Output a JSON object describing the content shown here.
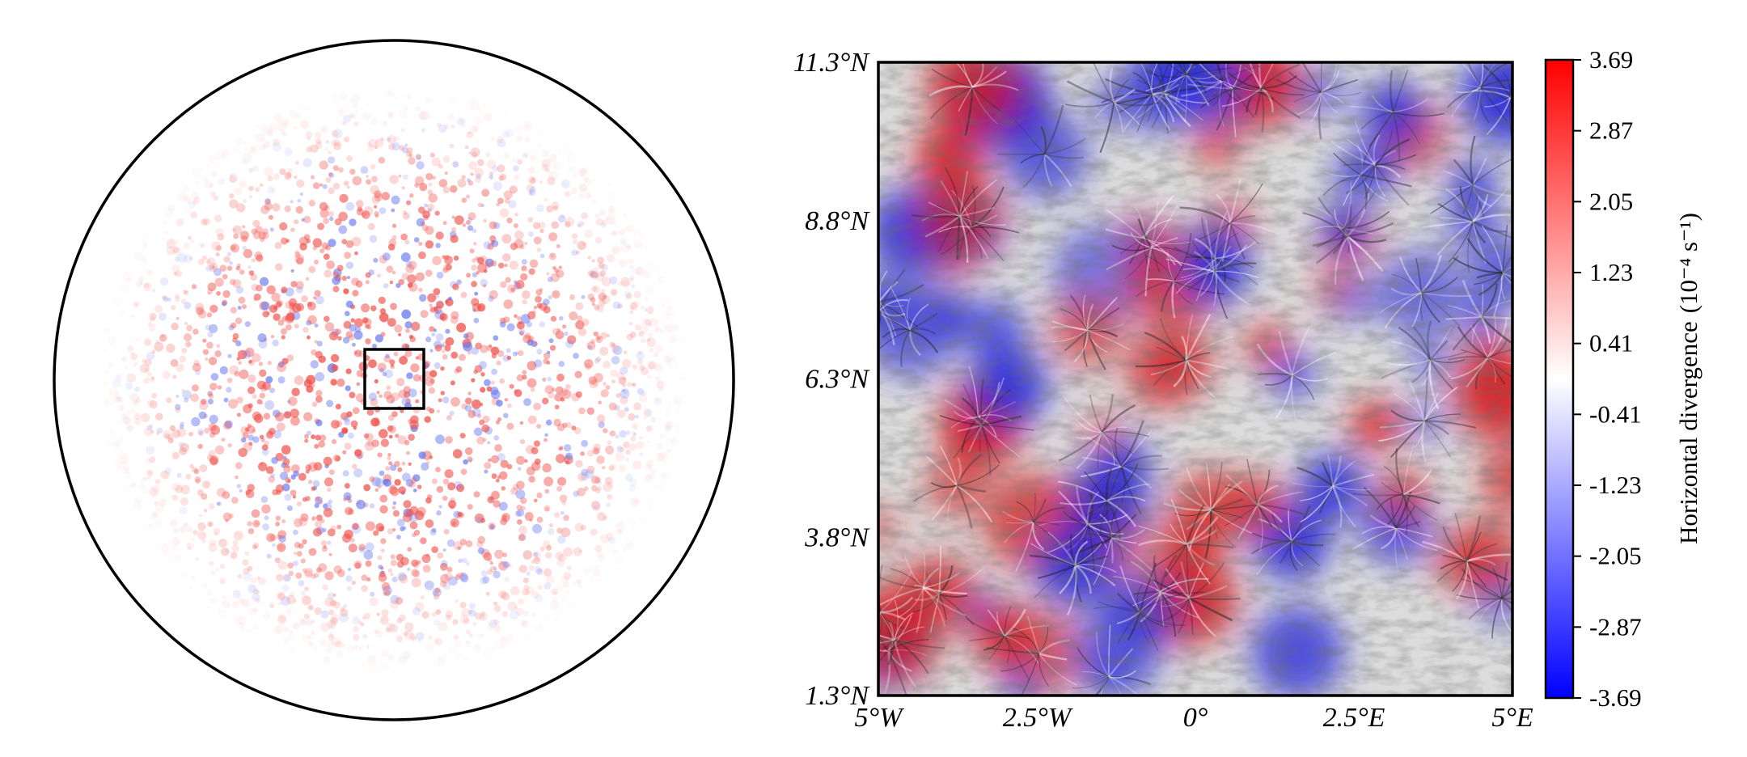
{
  "left_panel": {
    "view": "full-disk map of horizontal divergence",
    "inset_box": "marks the zoomed region shown in the right panel"
  },
  "right_panel": {
    "lat_ticks": [
      {
        "value": 11.3,
        "label": "11.3°N"
      },
      {
        "value": 8.8,
        "label": "8.8°N"
      },
      {
        "value": 6.3,
        "label": "6.3°N"
      },
      {
        "value": 3.8,
        "label": "3.8°N"
      },
      {
        "value": 1.3,
        "label": "1.3°N"
      }
    ],
    "lon_ticks": [
      {
        "value": -5,
        "label": "5°W"
      },
      {
        "value": -2.5,
        "label": "2.5°W"
      },
      {
        "value": 0,
        "label": "0°"
      },
      {
        "value": 2.5,
        "label": "2.5°E"
      },
      {
        "value": 5,
        "label": "5°E"
      }
    ],
    "lat_range": [
      1.3,
      11.3
    ],
    "lon_range": [
      -5,
      5
    ]
  },
  "colorbar": {
    "title": "Horizontal divergence",
    "units": "(10⁻⁴ s⁻¹)",
    "range": [
      -3.69,
      3.69
    ],
    "tick_labels": [
      "3.69",
      "2.87",
      "2.05",
      "1.23",
      "0.41",
      "-0.41",
      "-1.23",
      "-2.05",
      "-2.87",
      "-3.69"
    ],
    "colors": {
      "max": "#ff0000",
      "mid": "#ffffff",
      "min": "#0000ff"
    }
  }
}
